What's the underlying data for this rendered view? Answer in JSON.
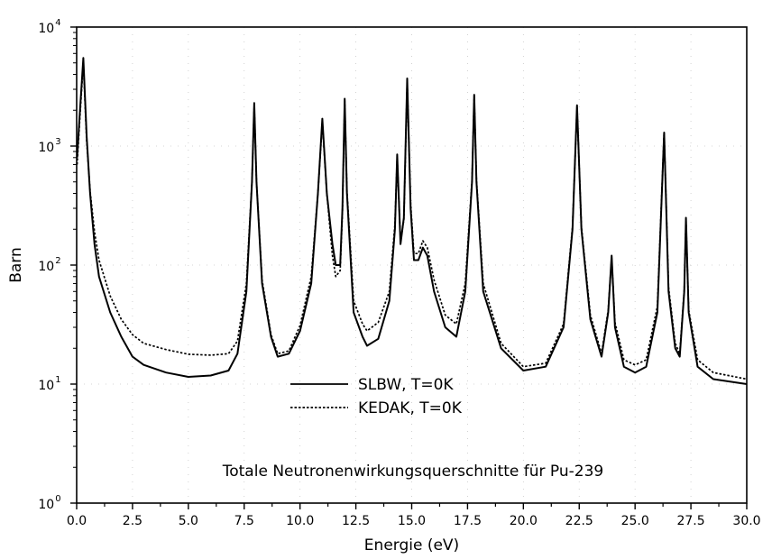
{
  "chart_data": {
    "type": "line",
    "title": "",
    "xlabel": "Energie (eV)",
    "ylabel": "Barn",
    "xlim": [
      0,
      30
    ],
    "ylim": [
      1,
      10000
    ],
    "yscale": "log",
    "grid": false,
    "x_ticks": [
      "0.0",
      "2.5",
      "5.0",
      "7.5",
      "10.0",
      "12.5",
      "15.0",
      "17.5",
      "20.0",
      "22.5",
      "25.0",
      "27.5",
      "30.0"
    ],
    "y_ticks": [
      {
        "base": "10",
        "exp": "0"
      },
      {
        "base": "10",
        "exp": "1"
      },
      {
        "base": "10",
        "exp": "2"
      },
      {
        "base": "10",
        "exp": "3"
      },
      {
        "base": "10",
        "exp": "4"
      }
    ],
    "legend_position": "center",
    "annotation": "Totale Neutronenwirkungsquerschnitte für Pu-239",
    "series": [
      {
        "name": "SLBW, T=0K",
        "style": "solid",
        "points": [
          [
            0.02,
            800
          ],
          [
            0.15,
            2000
          ],
          [
            0.3,
            5500
          ],
          [
            0.45,
            1200
          ],
          [
            0.6,
            400
          ],
          [
            0.8,
            150
          ],
          [
            1.0,
            80
          ],
          [
            1.5,
            40
          ],
          [
            2.0,
            25
          ],
          [
            2.5,
            17
          ],
          [
            3.0,
            14.5
          ],
          [
            4.0,
            12.5
          ],
          [
            5.0,
            11.5
          ],
          [
            6.0,
            11.8
          ],
          [
            6.8,
            13
          ],
          [
            7.2,
            18
          ],
          [
            7.6,
            60
          ],
          [
            7.85,
            500
          ],
          [
            7.95,
            2300
          ],
          [
            8.05,
            500
          ],
          [
            8.3,
            70
          ],
          [
            8.7,
            25
          ],
          [
            9.0,
            17
          ],
          [
            9.5,
            18
          ],
          [
            10.0,
            28
          ],
          [
            10.5,
            70
          ],
          [
            10.8,
            400
          ],
          [
            11.0,
            1700
          ],
          [
            11.2,
            400
          ],
          [
            11.45,
            150
          ],
          [
            11.6,
            100
          ],
          [
            11.8,
            100
          ],
          [
            11.9,
            300
          ],
          [
            12.0,
            2500
          ],
          [
            12.1,
            400
          ],
          [
            12.4,
            40
          ],
          [
            12.8,
            25
          ],
          [
            13.0,
            21
          ],
          [
            13.5,
            24
          ],
          [
            14.0,
            50
          ],
          [
            14.25,
            200
          ],
          [
            14.35,
            850
          ],
          [
            14.5,
            150
          ],
          [
            14.65,
            250
          ],
          [
            14.8,
            3700
          ],
          [
            14.95,
            300
          ],
          [
            15.1,
            110
          ],
          [
            15.3,
            110
          ],
          [
            15.5,
            140
          ],
          [
            15.7,
            120
          ],
          [
            16.0,
            60
          ],
          [
            16.5,
            30
          ],
          [
            17.0,
            25
          ],
          [
            17.4,
            60
          ],
          [
            17.7,
            500
          ],
          [
            17.8,
            2700
          ],
          [
            17.9,
            500
          ],
          [
            18.2,
            60
          ],
          [
            19.0,
            20
          ],
          [
            20.0,
            13
          ],
          [
            21.0,
            14
          ],
          [
            21.8,
            30
          ],
          [
            22.2,
            200
          ],
          [
            22.4,
            2200
          ],
          [
            22.6,
            200
          ],
          [
            23.0,
            35
          ],
          [
            23.5,
            17
          ],
          [
            23.8,
            40
          ],
          [
            23.95,
            120
          ],
          [
            24.1,
            30
          ],
          [
            24.5,
            14
          ],
          [
            25.0,
            12.5
          ],
          [
            25.5,
            14
          ],
          [
            26.0,
            40
          ],
          [
            26.3,
            1300
          ],
          [
            26.5,
            60
          ],
          [
            26.8,
            20
          ],
          [
            27.0,
            17
          ],
          [
            27.2,
            60
          ],
          [
            27.28,
            250
          ],
          [
            27.4,
            40
          ],
          [
            27.8,
            14
          ],
          [
            28.5,
            11
          ],
          [
            30.0,
            10
          ]
        ]
      },
      {
        "name": "KEDAK, T=0K",
        "style": "dotted",
        "points": [
          [
            0.02,
            700
          ],
          [
            0.15,
            1800
          ],
          [
            0.3,
            5000
          ],
          [
            0.45,
            1100
          ],
          [
            0.6,
            420
          ],
          [
            0.8,
            190
          ],
          [
            1.0,
            110
          ],
          [
            1.5,
            55
          ],
          [
            2.0,
            35
          ],
          [
            2.5,
            26
          ],
          [
            3.0,
            22
          ],
          [
            4.0,
            19.5
          ],
          [
            5.0,
            17.8
          ],
          [
            6.0,
            17.5
          ],
          [
            6.8,
            18
          ],
          [
            7.2,
            23
          ],
          [
            7.6,
            70
          ],
          [
            7.85,
            500
          ],
          [
            7.95,
            2200
          ],
          [
            8.05,
            500
          ],
          [
            8.3,
            75
          ],
          [
            8.7,
            26
          ],
          [
            9.0,
            18
          ],
          [
            9.5,
            19
          ],
          [
            10.0,
            31
          ],
          [
            10.5,
            80
          ],
          [
            10.8,
            400
          ],
          [
            11.0,
            1600
          ],
          [
            11.2,
            400
          ],
          [
            11.45,
            120
          ],
          [
            11.6,
            80
          ],
          [
            11.8,
            90
          ],
          [
            11.9,
            280
          ],
          [
            12.0,
            2400
          ],
          [
            12.1,
            420
          ],
          [
            12.4,
            50
          ],
          [
            12.8,
            32
          ],
          [
            13.0,
            28
          ],
          [
            13.5,
            33
          ],
          [
            14.0,
            60
          ],
          [
            14.25,
            220
          ],
          [
            14.35,
            800
          ],
          [
            14.5,
            160
          ],
          [
            14.65,
            240
          ],
          [
            14.8,
            3500
          ],
          [
            14.95,
            330
          ],
          [
            15.1,
            125
          ],
          [
            15.3,
            125
          ],
          [
            15.5,
            160
          ],
          [
            15.7,
            140
          ],
          [
            16.0,
            75
          ],
          [
            16.5,
            38
          ],
          [
            17.0,
            32
          ],
          [
            17.4,
            70
          ],
          [
            17.7,
            520
          ],
          [
            17.8,
            2600
          ],
          [
            17.9,
            520
          ],
          [
            18.2,
            70
          ],
          [
            19.0,
            22
          ],
          [
            20.0,
            14
          ],
          [
            21.0,
            15
          ],
          [
            21.8,
            32
          ],
          [
            22.2,
            210
          ],
          [
            22.4,
            2100
          ],
          [
            22.6,
            210
          ],
          [
            23.0,
            38
          ],
          [
            23.5,
            18
          ],
          [
            23.8,
            42
          ],
          [
            23.95,
            115
          ],
          [
            24.1,
            33
          ],
          [
            24.5,
            16
          ],
          [
            25.0,
            14.5
          ],
          [
            25.5,
            16
          ],
          [
            26.0,
            45
          ],
          [
            26.3,
            1300
          ],
          [
            26.5,
            65
          ],
          [
            26.8,
            22
          ],
          [
            27.0,
            18
          ],
          [
            27.2,
            62
          ],
          [
            27.28,
            240
          ],
          [
            27.4,
            42
          ],
          [
            27.8,
            16
          ],
          [
            28.5,
            12.5
          ],
          [
            30.0,
            11
          ]
        ]
      }
    ]
  }
}
